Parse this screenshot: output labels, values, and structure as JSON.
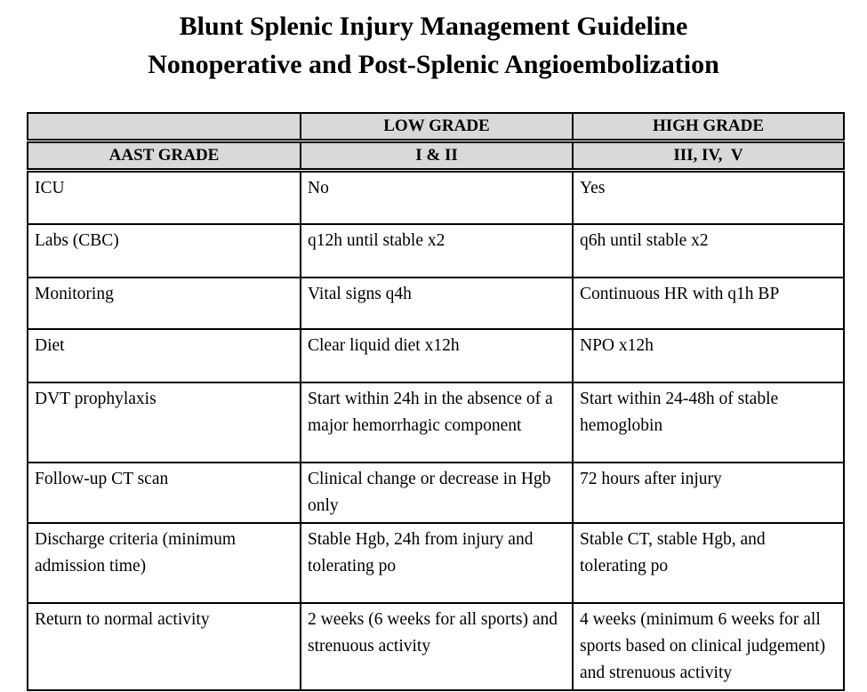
{
  "page": {
    "title_line1": "Blunt Splenic Injury Management Guideline",
    "title_line2": "Nonoperative and Post-Splenic Angioembolization"
  },
  "colors": {
    "header_background": "#d9d9d9",
    "border": "#000000",
    "text": "#000000",
    "page_background": "#ffffff"
  },
  "table": {
    "header_row1": {
      "col1": "",
      "col2": "LOW GRADE",
      "col3": "HIGH GRADE"
    },
    "header_row2": {
      "col1": "AAST GRADE",
      "col2": "I & II",
      "col3": "III, IV,  V"
    },
    "rows": [
      {
        "label": "ICU",
        "low": "No",
        "high": "Yes"
      },
      {
        "label": "Labs (CBC)",
        "low": "q12h until stable x2",
        "high": "q6h until stable x2"
      },
      {
        "label": "Monitoring",
        "low": "Vital signs q4h",
        "high": "Continuous HR with q1h BP"
      },
      {
        "label": "Diet",
        "low": "Clear liquid diet x12h",
        "high": "NPO x12h"
      },
      {
        "label": "DVT prophylaxis",
        "low": "Start within 24h in the absence of a major hemorrhagic component",
        "high": "Start within 24-48h of stable hemoglobin"
      },
      {
        "label": "Follow-up CT scan",
        "low": "Clinical change or decrease in Hgb only",
        "high": "72 hours after injury"
      },
      {
        "label": "Discharge criteria (minimum admission time)",
        "low": "Stable Hgb, 24h from injury and tolerating po",
        "high": "Stable CT, stable Hgb, and tolerating po"
      },
      {
        "label": "Return to normal activity",
        "low": "2 weeks (6 weeks for all sports) and strenuous activity",
        "high": "4 weeks (minimum 6 weeks for all sports based on clinical judgement) and strenuous activity"
      }
    ]
  }
}
